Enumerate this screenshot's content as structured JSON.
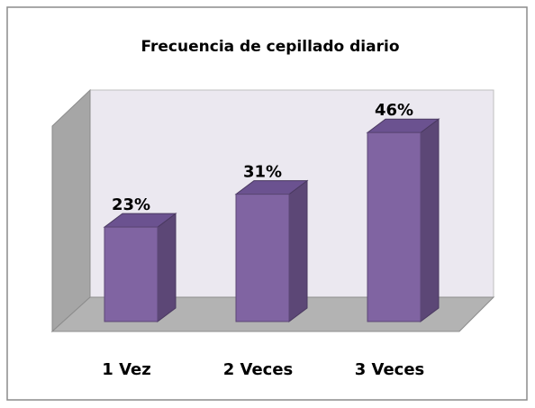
{
  "chart_data": {
    "type": "bar3d",
    "title": "Frecuencia de cepillado diario",
    "categories": [
      "1 Vez",
      "2 Veces",
      "3 Veces"
    ],
    "values": [
      23,
      31,
      46
    ],
    "value_labels": [
      "23%",
      "31%",
      "46%"
    ],
    "color": "#8064a2"
  }
}
